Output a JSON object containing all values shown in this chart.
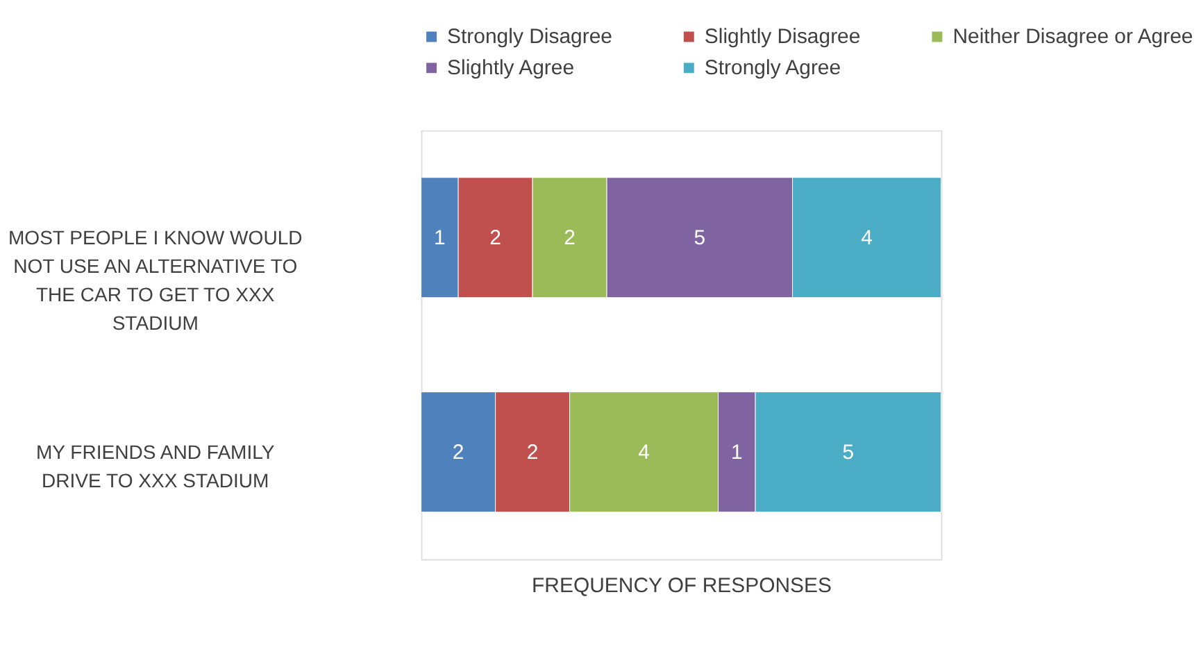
{
  "chart_data": {
    "type": "bar",
    "orientation": "horizontal",
    "stacked": true,
    "data_labels": true,
    "legend": "top",
    "xlabel": "FREQUENCY OF RESPONSES",
    "categories": [
      "MOST PEOPLE I KNOW WOULD NOT USE AN ALTERNATIVE TO THE CAR TO GET TO XXX STADIUM",
      "MY FRIENDS AND FAMILY DRIVE TO XXX STADIUM"
    ],
    "series": [
      {
        "name": "Strongly Disagree",
        "color": "#4f81bd",
        "values": [
          1,
          2
        ]
      },
      {
        "name": "Slightly Disagree",
        "color": "#c0504d",
        "values": [
          2,
          2
        ]
      },
      {
        "name": "Neither Disagree or Agree",
        "color": "#9bbb59",
        "values": [
          2,
          4
        ]
      },
      {
        "name": "Slightly Agree",
        "color": "#8064a2",
        "values": [
          5,
          1
        ]
      },
      {
        "name": "Strongly Agree",
        "color": "#4bacc6",
        "values": [
          4,
          5
        ]
      }
    ]
  }
}
